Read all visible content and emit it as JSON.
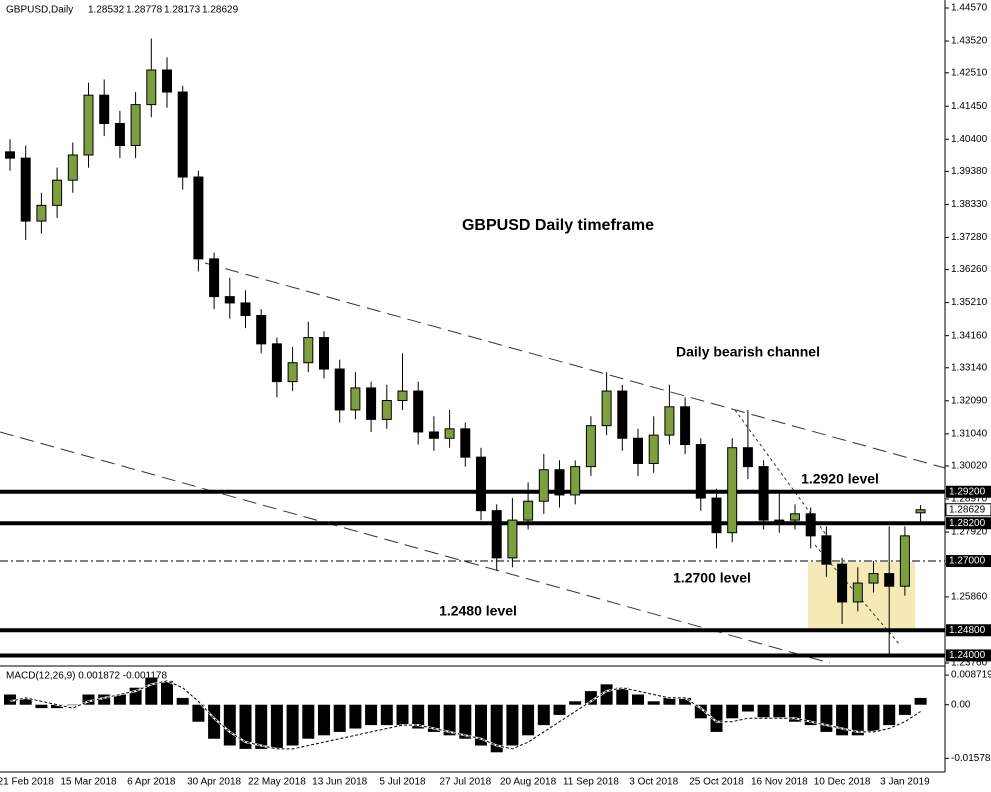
{
  "chart_data": {
    "type": "candlestick",
    "symbol": "GBPUSD,Daily",
    "title": "GBPUSD Daily timeframe",
    "annotations": [
      "Daily bearish channel",
      "1.2920 level",
      "1.2700 level",
      "1.2480 level"
    ],
    "categories": [
      null,
      "21 Feb 2018",
      null,
      null,
      null,
      "15 Mar 2018",
      null,
      null,
      null,
      "6 Apr 2018",
      null,
      null,
      null,
      "30 Apr 2018",
      null,
      null,
      null,
      "22 May 2018",
      null,
      null,
      null,
      "13 Jun 2018",
      null,
      null,
      null,
      "5 Jul 2018",
      null,
      null,
      null,
      "27 Jul 2018",
      null,
      null,
      null,
      "20 Aug 2018",
      null,
      null,
      null,
      "11 Sep 2018",
      null,
      null,
      null,
      "3 Oct 2018",
      null,
      null,
      null,
      "25 Oct 2018",
      null,
      null,
      null,
      "16 Nov 2018",
      null,
      null,
      null,
      "10 Dec 2018",
      null,
      null,
      null,
      "3 Jan 2019",
      null
    ],
    "open": [
      1.4,
      1.398,
      1.378,
      1.383,
      1.391,
      1.399,
      1.418,
      1.409,
      1.402,
      1.415,
      1.426,
      1.419,
      1.392,
      1.366,
      1.354,
      1.352,
      1.348,
      1.339,
      1.327,
      1.333,
      1.341,
      1.331,
      1.318,
      1.325,
      1.315,
      1.321,
      1.324,
      1.311,
      1.309,
      1.312,
      1.303,
      1.286,
      1.271,
      1.283,
      1.289,
      1.299,
      1.291,
      1.3,
      1.313,
      1.324,
      1.309,
      1.301,
      1.31,
      1.319,
      1.307,
      1.29,
      1.279,
      1.306,
      1.3,
      1.283,
      1.283,
      1.285,
      1.278,
      1.269,
      1.257,
      1.263,
      1.266,
      1.262,
      1.28532
    ],
    "high": [
      1.404,
      1.402,
      1.387,
      1.395,
      1.403,
      1.422,
      1.423,
      1.413,
      1.419,
      1.436,
      1.43,
      1.421,
      1.394,
      1.368,
      1.36,
      1.356,
      1.35,
      1.341,
      1.338,
      1.346,
      1.343,
      1.334,
      1.33,
      1.327,
      1.326,
      1.336,
      1.327,
      1.316,
      1.318,
      1.314,
      1.306,
      1.288,
      1.29,
      1.295,
      1.304,
      1.302,
      1.302,
      1.316,
      1.33,
      1.326,
      1.312,
      1.316,
      1.326,
      1.322,
      1.309,
      1.293,
      1.309,
      1.318,
      1.302,
      1.292,
      1.288,
      1.287,
      1.281,
      1.271,
      1.268,
      1.27,
      1.281,
      1.281,
      1.28778
    ],
    "low": [
      1.394,
      1.372,
      1.374,
      1.379,
      1.387,
      1.395,
      1.405,
      1.398,
      1.398,
      1.411,
      1.414,
      1.388,
      1.362,
      1.35,
      1.347,
      1.344,
      1.336,
      1.322,
      1.324,
      1.33,
      1.328,
      1.314,
      1.315,
      1.311,
      1.312,
      1.318,
      1.307,
      1.305,
      1.306,
      1.3,
      1.283,
      1.267,
      1.268,
      1.28,
      1.285,
      1.287,
      1.288,
      1.297,
      1.31,
      1.305,
      1.297,
      1.298,
      1.307,
      1.304,
      1.286,
      1.274,
      1.276,
      1.296,
      1.28,
      1.279,
      1.28,
      1.274,
      1.265,
      1.25,
      1.254,
      1.26,
      1.24,
      1.259,
      1.28173
    ],
    "close": [
      1.398,
      1.378,
      1.383,
      1.391,
      1.399,
      1.418,
      1.409,
      1.402,
      1.415,
      1.426,
      1.419,
      1.392,
      1.366,
      1.354,
      1.352,
      1.348,
      1.339,
      1.327,
      1.333,
      1.341,
      1.331,
      1.318,
      1.325,
      1.315,
      1.321,
      1.324,
      1.311,
      1.309,
      1.312,
      1.303,
      1.286,
      1.271,
      1.283,
      1.289,
      1.299,
      1.291,
      1.3,
      1.313,
      1.324,
      1.309,
      1.301,
      1.31,
      1.319,
      1.307,
      1.29,
      1.279,
      1.306,
      1.3,
      1.283,
      1.283,
      1.285,
      1.278,
      1.269,
      1.257,
      1.263,
      1.266,
      1.262,
      1.278,
      1.28629
    ],
    "up_color": "#7f9f3f",
    "down_color": "#000000",
    "ylim": [
      1.2376,
      1.4457
    ],
    "yticks": [
      {
        "value": 1.4457,
        "label": "1.44570"
      },
      {
        "value": 1.4352,
        "label": "1.43520"
      },
      {
        "value": 1.4251,
        "label": "1.42510"
      },
      {
        "value": 1.4145,
        "label": "1.41450"
      },
      {
        "value": 1.404,
        "label": "1.40400"
      },
      {
        "value": 1.3938,
        "label": "1.39380"
      },
      {
        "value": 1.3833,
        "label": "1.38330"
      },
      {
        "value": 1.3728,
        "label": "1.37280"
      },
      {
        "value": 1.3626,
        "label": "1.36260"
      },
      {
        "value": 1.3521,
        "label": "1.35210"
      },
      {
        "value": 1.3416,
        "label": "1.34160"
      },
      {
        "value": 1.3314,
        "label": "1.33140"
      },
      {
        "value": 1.3209,
        "label": "1.32090"
      },
      {
        "value": 1.3104,
        "label": "1.31040"
      },
      {
        "value": 1.3002,
        "label": "1.30020"
      },
      {
        "value": 1.2897,
        "label": "1.28970"
      },
      {
        "value": 1.2792,
        "label": "1.27920"
      },
      {
        "value": 1.269,
        "label": "1.26900"
      },
      {
        "value": 1.2586,
        "label": "1.25860"
      },
      {
        "value": 1.2376,
        "label": "1.23760"
      }
    ],
    "levels": [
      {
        "value": 1.292,
        "label": "1.29200",
        "style": "solid"
      },
      {
        "value": 1.282,
        "label": "1.28200",
        "style": "solid"
      },
      {
        "value": 1.27,
        "label": "1.27000",
        "style": "dashdot"
      },
      {
        "value": 1.248,
        "label": "1.24800",
        "style": "solid"
      },
      {
        "value": 1.24,
        "label": "1.24000",
        "style": "solid"
      }
    ],
    "macd": {
      "label": "MACD(12,26,9) 0.001872 -0.001178",
      "histogram": [
        0.003,
        0.002,
        -0.001,
        -0.001,
        0,
        0.003,
        0.003,
        0.003,
        0.005,
        0.008,
        0.007,
        0.002,
        -0.005,
        -0.01,
        -0.012,
        -0.013,
        -0.013,
        -0.013,
        -0.012,
        -0.01,
        -0.009,
        -0.008,
        -0.007,
        -0.006,
        -0.006,
        -0.006,
        -0.007,
        -0.008,
        -0.009,
        -0.01,
        -0.012,
        -0.014,
        -0.012,
        -0.009,
        -0.006,
        -0.003,
        0.001,
        0.004,
        0.006,
        0.005,
        0.003,
        0.001,
        0.002,
        0.002,
        -0.004,
        -0.008,
        -0.004,
        -0.002,
        -0.004,
        -0.004,
        -0.005,
        -0.006,
        -0.008,
        -0.009,
        -0.009,
        -0.008,
        -0.006,
        -0.003,
        0.002
      ],
      "signal": [
        0.001,
        0.002,
        0.001,
        0,
        -0.001,
        0.001,
        0.002,
        0.003,
        0.004,
        0.006,
        0.007,
        0.005,
        0.001,
        -0.004,
        -0.008,
        -0.011,
        -0.012,
        -0.013,
        -0.013,
        -0.012,
        -0.011,
        -0.01,
        -0.009,
        -0.008,
        -0.007,
        -0.006,
        -0.006,
        -0.007,
        -0.008,
        -0.009,
        -0.01,
        -0.012,
        -0.013,
        -0.011,
        -0.008,
        -0.005,
        -0.002,
        0.001,
        0.004,
        0.005,
        0.004,
        0.003,
        0.002,
        0.002,
        -0.001,
        -0.005,
        -0.005,
        -0.004,
        -0.004,
        -0.004,
        -0.004,
        -0.005,
        -0.006,
        -0.007,
        -0.008,
        -0.008,
        -0.007,
        -0.005,
        -0.002
      ],
      "ylim": [
        -0.0195,
        0.0108
      ],
      "yticks": [
        0.008719,
        {
          "value": 0,
          "label": "0.00"
        },
        -0.015788
      ]
    }
  }
}
